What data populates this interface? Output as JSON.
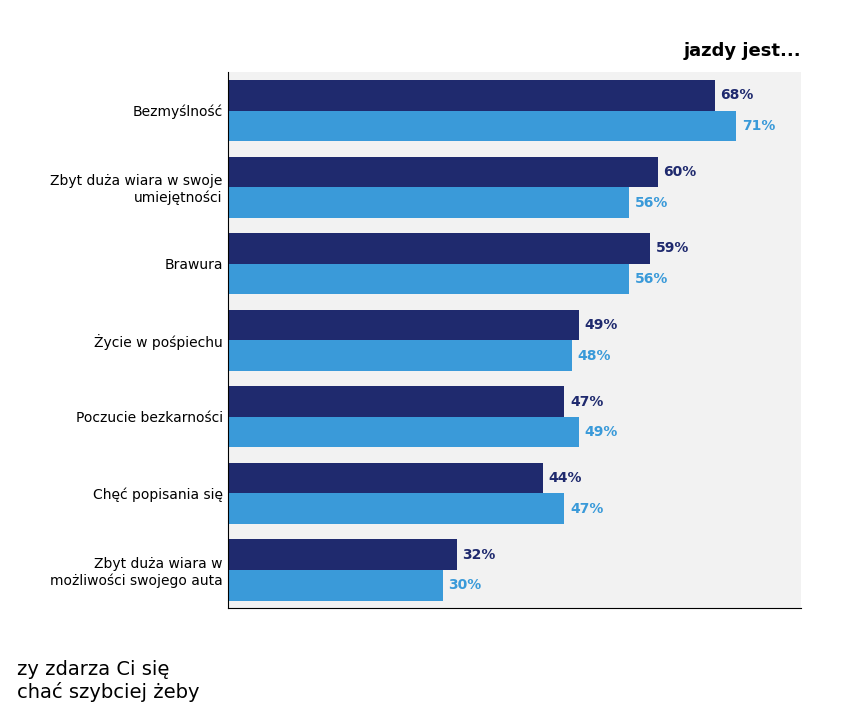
{
  "chart_data": {
    "type": "bar",
    "orientation": "horizontal",
    "title": "jazdy jest...",
    "categories": [
      "Bezmyślność",
      "Zbyt duża wiara w swoje umiejętności",
      "Brawura",
      "Życie w pośpiechu",
      "Poczucie bezkarności",
      "Chęć popisania się",
      "Zbyt duża wiara w możliwości swojego auta"
    ],
    "series": [
      {
        "color": "#1f2a6e",
        "values": [
          68,
          60,
          59,
          49,
          47,
          44,
          32
        ],
        "value_labels": [
          "68%",
          "60%",
          "59%",
          "49%",
          "47%",
          "44%",
          "32%"
        ]
      },
      {
        "color": "#3a9ad9",
        "values": [
          71,
          56,
          56,
          48,
          49,
          47,
          30
        ],
        "value_labels": [
          "71%",
          "56%",
          "56%",
          "48%",
          "49%",
          "47%",
          "30%"
        ]
      }
    ],
    "xlim": [
      0,
      80
    ],
    "data_labels": true,
    "tick_labels": "y",
    "grid": false,
    "annotations": [
      "zy zdarza Ci się",
      "chać szybciej żeby"
    ]
  }
}
